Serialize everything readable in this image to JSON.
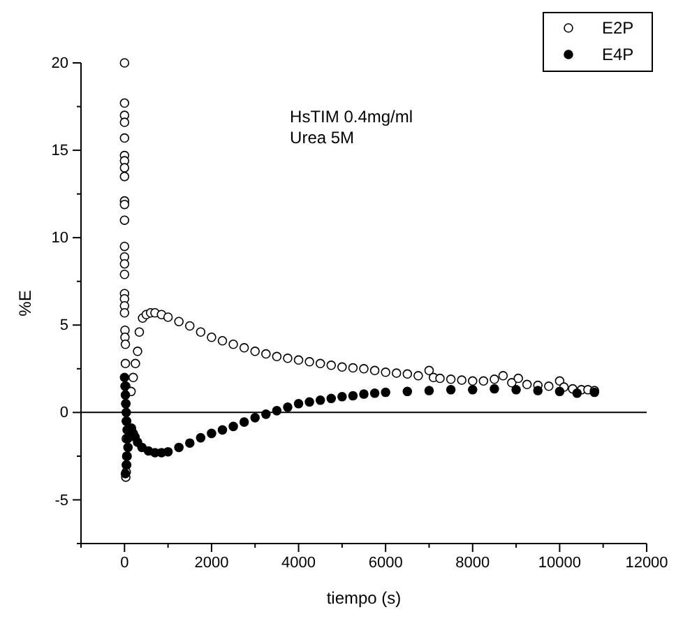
{
  "chart_data": {
    "type": "scatter",
    "xlabel": "tiempo (s)",
    "ylabel": "%E",
    "annotations": [
      "HsTIM 0.4mg/ml",
      "Urea 5M"
    ],
    "xlim": [
      -1000,
      12000
    ],
    "xticks": [
      {
        "value": -1000,
        "label": null
      },
      0,
      {
        "value": 1000,
        "label": null
      },
      2000,
      {
        "value": 3000,
        "label": null
      },
      4000,
      {
        "value": 5000,
        "label": null
      },
      6000,
      {
        "value": 7000,
        "label": null
      },
      8000,
      {
        "value": 9000,
        "label": null
      },
      10000,
      {
        "value": 11000,
        "label": null
      },
      12000
    ],
    "ylim": [
      -7.5,
      20
    ],
    "yticks": [
      {
        "value": -7.5,
        "label": null
      },
      -5,
      {
        "value": -2.5,
        "label": null
      },
      0,
      {
        "value": 2.5,
        "label": null
      },
      5,
      {
        "value": 7.5,
        "label": null
      },
      10,
      {
        "value": 12.5,
        "label": null
      },
      15,
      {
        "value": 17.5,
        "label": null
      },
      20
    ],
    "ref_lines": [
      {
        "axis": "y",
        "value": 0,
        "color": "#000000"
      }
    ],
    "marker": "circle",
    "legend": "top right",
    "grid": false,
    "series": [
      {
        "name": "E2P",
        "color": "#ffffff",
        "x": [
          0,
          0,
          0,
          0,
          0,
          0,
          0,
          0,
          0,
          0,
          0,
          0,
          0,
          0,
          0,
          0,
          0,
          0,
          0,
          0,
          10,
          10,
          20,
          20,
          30,
          30,
          40,
          40,
          50,
          50,
          40,
          30,
          150,
          200,
          250,
          300,
          340,
          415,
          500,
          600,
          700,
          850,
          1000,
          1250,
          1500,
          1750,
          2000,
          2250,
          2500,
          2750,
          3000,
          3250,
          3500,
          3750,
          4000,
          4250,
          4500,
          4750,
          5000,
          5250,
          5500,
          5750,
          6000,
          6250,
          6500,
          6750,
          7000,
          7100,
          7250,
          7500,
          7750,
          8000,
          8250,
          8500,
          8700,
          8900,
          9050,
          9250,
          9500,
          9750,
          10000,
          10100,
          10300,
          10500,
          10650,
          10800
        ],
        "values": [
          20,
          17.7,
          17.0,
          16.6,
          15.7,
          14.7,
          14.4,
          14.0,
          13.5,
          12.1,
          11.9,
          11.0,
          9.5,
          8.9,
          8.5,
          7.9,
          6.8,
          6.5,
          6.1,
          5.7,
          4.7,
          4.3,
          3.9,
          2.8,
          1.5,
          0.5,
          -0.5,
          -1.5,
          -2.5,
          -3.0,
          -3.4,
          -3.7,
          1.2,
          2.0,
          2.8,
          3.5,
          4.6,
          5.4,
          5.6,
          5.7,
          5.7,
          5.6,
          5.45,
          5.2,
          4.95,
          4.6,
          4.3,
          4.1,
          3.9,
          3.7,
          3.5,
          3.35,
          3.2,
          3.1,
          3.0,
          2.9,
          2.8,
          2.7,
          2.6,
          2.55,
          2.5,
          2.4,
          2.3,
          2.25,
          2.2,
          2.1,
          2.4,
          2.0,
          1.95,
          1.9,
          1.85,
          1.8,
          1.8,
          1.9,
          2.1,
          1.7,
          1.95,
          1.6,
          1.55,
          1.5,
          1.8,
          1.45,
          1.35,
          1.3,
          1.3,
          1.25
        ]
      },
      {
        "name": "E4P",
        "color": "#000000",
        "x": [
          0,
          10,
          20,
          30,
          40,
          50,
          60,
          70,
          80,
          60,
          40,
          20,
          160,
          200,
          240,
          300,
          400,
          550,
          700,
          850,
          1000,
          1250,
          1500,
          1750,
          2000,
          2250,
          2500,
          2750,
          3000,
          3250,
          3500,
          3750,
          4000,
          4250,
          4500,
          4750,
          5000,
          5250,
          5500,
          5750,
          6000,
          6500,
          7000,
          7500,
          8000,
          8500,
          9000,
          9500,
          10000,
          10400,
          10800
        ],
        "values": [
          2.0,
          1.5,
          1.0,
          0.5,
          0,
          -0.5,
          -1,
          -1.5,
          -2,
          -2.5,
          -3,
          -3.5,
          -0.9,
          -1.2,
          -1.4,
          -1.7,
          -2.0,
          -2.2,
          -2.3,
          -2.3,
          -2.25,
          -2.0,
          -1.75,
          -1.45,
          -1.2,
          -1.0,
          -0.8,
          -0.55,
          -0.3,
          -0.1,
          0.1,
          0.3,
          0.5,
          0.6,
          0.7,
          0.8,
          0.9,
          0.95,
          1.05,
          1.1,
          1.15,
          1.2,
          1.25,
          1.3,
          1.3,
          1.35,
          1.3,
          1.25,
          1.2,
          1.1,
          1.15
        ]
      }
    ]
  }
}
